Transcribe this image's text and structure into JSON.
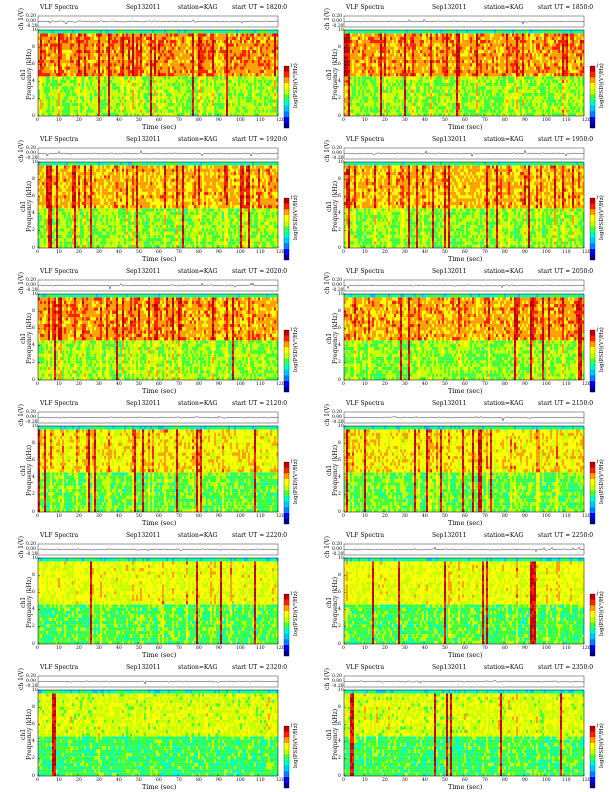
{
  "figure": {
    "instrument": "VLF Spectra",
    "date": "Sep132011",
    "station": "station=KAG",
    "start_prefix": "start  UT =",
    "top_ylabel": "ch 1(V)",
    "spec_ylabel_line1": "ch1",
    "spec_ylabel_line2": "Frequency  (kHz)",
    "cbar_label": "log(PSD)(V²/Hz)",
    "xlabel": "Time  (sec)",
    "colors": {
      "map": [
        "#00008b",
        "#0000ff",
        "#0080ff",
        "#00c8ff",
        "#00ffc0",
        "#40ff40",
        "#c8ff00",
        "#ffff00",
        "#ffa000",
        "#ff2000",
        "#c00000"
      ]
    }
  },
  "chart_data": [
    {
      "type": "heatmap",
      "start_ut": "1820:0",
      "activity": 0.85,
      "x_ticks": [
        0,
        10,
        20,
        30,
        40,
        50,
        60,
        70,
        80,
        90,
        100,
        110,
        120
      ],
      "y_ticks": [
        0,
        2,
        4,
        6,
        8,
        10
      ],
      "top_ticks": [
        "0.20",
        "0.00",
        "-0.20"
      ],
      "xlim": [
        0,
        120
      ],
      "ylim": [
        0,
        10
      ],
      "cbar_ticks": [
        "1",
        "",
        ""
      ]
    },
    {
      "type": "heatmap",
      "start_ut": "1850:0",
      "activity": 0.85,
      "x_ticks": [
        0,
        10,
        20,
        30,
        40,
        50,
        60,
        70,
        80,
        90,
        100,
        110,
        120
      ],
      "y_ticks": [
        0,
        2,
        4,
        6,
        8,
        10
      ],
      "top_ticks": [
        "0.20",
        "0.00",
        "-0.20"
      ],
      "xlim": [
        0,
        120
      ],
      "ylim": [
        0,
        10
      ],
      "cbar_ticks": [
        "1",
        "",
        ""
      ]
    },
    {
      "type": "heatmap",
      "start_ut": "1920:0",
      "activity": 0.75,
      "x_ticks": [
        0,
        10,
        20,
        30,
        40,
        50,
        60,
        70,
        80,
        90,
        100,
        110,
        120
      ],
      "y_ticks": [
        0,
        2,
        4,
        6,
        8,
        10
      ],
      "top_ticks": [
        "0.20",
        "0.00",
        "-0.20"
      ],
      "xlim": [
        0,
        120
      ],
      "ylim": [
        0,
        10
      ],
      "cbar_ticks": [
        "1",
        "",
        ""
      ]
    },
    {
      "type": "heatmap",
      "start_ut": "1950:0",
      "activity": 0.75,
      "x_ticks": [
        0,
        10,
        20,
        30,
        40,
        50,
        60,
        70,
        80,
        90,
        100,
        110,
        120
      ],
      "y_ticks": [
        0,
        2,
        4,
        6,
        8,
        10
      ],
      "top_ticks": [
        "0.20",
        "0.00",
        "-0.20"
      ],
      "xlim": [
        0,
        120
      ],
      "ylim": [
        0,
        10
      ],
      "cbar_ticks": [
        "1",
        "",
        ""
      ]
    },
    {
      "type": "heatmap",
      "start_ut": "2020:0",
      "activity": 0.8,
      "x_ticks": [
        0,
        10,
        20,
        30,
        40,
        50,
        60,
        70,
        80,
        90,
        100,
        110,
        120
      ],
      "y_ticks": [
        0,
        2,
        4,
        6,
        8,
        10
      ],
      "top_ticks": [
        "0.20",
        "0.00",
        "-0.20"
      ],
      "xlim": [
        0,
        120
      ],
      "ylim": [
        0,
        10
      ],
      "cbar_ticks": [
        "1",
        "",
        ""
      ]
    },
    {
      "type": "heatmap",
      "start_ut": "2050:0",
      "activity": 0.8,
      "x_ticks": [
        0,
        10,
        20,
        30,
        40,
        50,
        60,
        70,
        80,
        90,
        100,
        110,
        120
      ],
      "y_ticks": [
        0,
        2,
        4,
        6,
        8,
        10
      ],
      "top_ticks": [
        "0.20",
        "0.00",
        "-0.20"
      ],
      "xlim": [
        0,
        120
      ],
      "ylim": [
        0,
        10
      ],
      "cbar_ticks": [
        "1",
        "",
        ""
      ]
    },
    {
      "type": "heatmap",
      "start_ut": "2120:0",
      "activity": 0.55,
      "x_ticks": [
        0,
        10,
        20,
        30,
        40,
        50,
        60,
        70,
        80,
        90,
        100,
        110,
        120
      ],
      "y_ticks": [
        0,
        2,
        4,
        6,
        8,
        10
      ],
      "top_ticks": [
        "0.20",
        "0.00",
        "-0.20"
      ],
      "xlim": [
        0,
        120
      ],
      "ylim": [
        0,
        10
      ],
      "cbar_ticks": [
        "1",
        "",
        ""
      ]
    },
    {
      "type": "heatmap",
      "start_ut": "2150:0",
      "activity": 0.55,
      "x_ticks": [
        0,
        10,
        20,
        30,
        40,
        50,
        60,
        70,
        80,
        90,
        100,
        110,
        120
      ],
      "y_ticks": [
        0,
        2,
        4,
        6,
        8,
        10
      ],
      "top_ticks": [
        "0.20",
        "0.00",
        "-0.20"
      ],
      "xlim": [
        0,
        120
      ],
      "ylim": [
        0,
        10
      ],
      "cbar_ticks": [
        "1",
        "",
        ""
      ]
    },
    {
      "type": "heatmap",
      "start_ut": "2220:0",
      "activity": 0.45,
      "x_ticks": [
        0,
        10,
        20,
        30,
        40,
        50,
        60,
        70,
        80,
        90,
        100,
        110,
        120
      ],
      "y_ticks": [
        0,
        2,
        4,
        6,
        8,
        10
      ],
      "top_ticks": [
        "0.20",
        "0.00",
        "-0.20"
      ],
      "xlim": [
        0,
        120
      ],
      "ylim": [
        0,
        10
      ],
      "cbar_ticks": [
        "1",
        "",
        ""
      ]
    },
    {
      "type": "heatmap",
      "start_ut": "2250:0",
      "activity": 0.45,
      "x_ticks": [
        0,
        10,
        20,
        30,
        40,
        50,
        60,
        70,
        80,
        90,
        100,
        110,
        120
      ],
      "y_ticks": [
        0,
        2,
        4,
        6,
        8,
        10
      ],
      "top_ticks": [
        "0.20",
        "0.00",
        "-0.20"
      ],
      "xlim": [
        0,
        120
      ],
      "ylim": [
        0,
        10
      ],
      "cbar_ticks": [
        "1",
        "",
        ""
      ]
    },
    {
      "type": "heatmap",
      "start_ut": "2320:0",
      "activity": 0.35,
      "x_ticks": [
        0,
        10,
        20,
        30,
        40,
        50,
        60,
        70,
        80,
        90,
        100,
        110,
        120
      ],
      "y_ticks": [
        0,
        2,
        4,
        6,
        8,
        10
      ],
      "top_ticks": [
        "0.20",
        "0.00",
        "-0.20"
      ],
      "xlim": [
        0,
        120
      ],
      "ylim": [
        0,
        10
      ],
      "cbar_ticks": [
        "1",
        "",
        ""
      ]
    },
    {
      "type": "heatmap",
      "start_ut": "2350:0",
      "activity": 0.35,
      "x_ticks": [
        0,
        10,
        20,
        30,
        40,
        50,
        60,
        70,
        80,
        90,
        100,
        110,
        120
      ],
      "y_ticks": [
        0,
        2,
        4,
        6,
        8,
        10
      ],
      "top_ticks": [
        "0.20",
        "0.00",
        "-0.20"
      ],
      "xlim": [
        0,
        120
      ],
      "ylim": [
        0,
        10
      ],
      "cbar_ticks": [
        "1",
        "",
        ""
      ]
    }
  ]
}
